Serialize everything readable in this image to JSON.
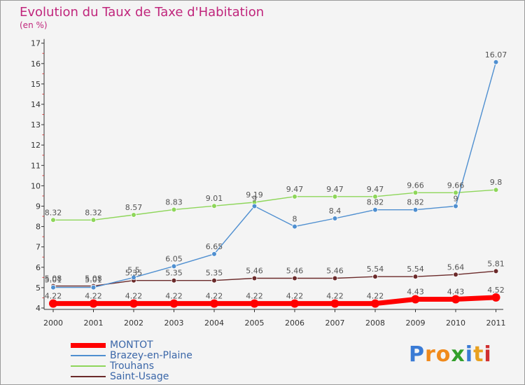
{
  "title": "Evolution du Taux de Taxe d'Habitation",
  "subtitle": "(en %)",
  "logo": [
    "P",
    "r",
    "o",
    "x",
    "i",
    "t",
    "i"
  ],
  "colors": {
    "title": "#c0267c",
    "logo": [
      "#3a7bd5",
      "#f08a1c",
      "#f08a1c",
      "#33a02c",
      "#3a7bd5",
      "#e8a020",
      "#d03030"
    ]
  },
  "chart_data": {
    "type": "line",
    "title": "Evolution du Taux de Taxe d'Habitation",
    "subtitle": "(en %)",
    "x": [
      "2000",
      "2001",
      "2002",
      "2003",
      "2004",
      "2005",
      "2006",
      "2007",
      "2008",
      "2009",
      "2010",
      "2011"
    ],
    "ylim": [
      4,
      17
    ],
    "yticks": [
      4,
      5,
      6,
      7,
      8,
      9,
      10,
      11,
      12,
      13,
      14,
      15,
      16,
      17
    ],
    "grid": false,
    "legend": "bottom-left",
    "series": [
      {
        "name": "MONTOT",
        "color": "#ff0000",
        "values": [
          4.22,
          4.22,
          4.22,
          4.22,
          4.22,
          4.22,
          4.22,
          4.22,
          4.22,
          4.43,
          4.43,
          4.52
        ],
        "labels": [
          "4.22",
          "4.22",
          "4.22",
          "4.22",
          "4.22",
          "4.22",
          "4.22",
          "4.22",
          "4.22",
          "4.43",
          "4.43",
          "4.52"
        ]
      },
      {
        "name": "Brazey-en-Plaine",
        "color": "#4f8fd0",
        "values": [
          5.01,
          5.01,
          5.5,
          6.05,
          6.65,
          9,
          8,
          8.4,
          8.82,
          8.82,
          9,
          16.07
        ],
        "labels": [
          "5.01",
          "5.01",
          "5.5",
          "6.05",
          "6.65",
          "9",
          "8",
          "8.4",
          "8.82",
          "8.82",
          "9",
          "16.07"
        ]
      },
      {
        "name": "Trouhans",
        "color": "#8ed65a",
        "values": [
          8.32,
          8.32,
          8.57,
          8.83,
          9.01,
          9.19,
          9.47,
          9.47,
          9.47,
          9.66,
          9.66,
          9.8
        ],
        "labels": [
          "8.32",
          "8.32",
          "8.57",
          "8.83",
          "9.01",
          "9.19",
          "9.47",
          "9.47",
          "9.47",
          "9.66",
          "9.66",
          "9.8"
        ]
      },
      {
        "name": "Saint-Usage",
        "color": "#6b2a2a",
        "values": [
          5.08,
          5.08,
          5.35,
          5.35,
          5.35,
          5.46,
          5.46,
          5.46,
          5.54,
          5.54,
          5.64,
          5.81
        ],
        "labels": [
          "5.08",
          "5.08",
          "5.35",
          "5.35",
          "5.35",
          "5.46",
          "5.46",
          "5.46",
          "5.54",
          "5.54",
          "5.64",
          "5.81"
        ]
      }
    ]
  }
}
